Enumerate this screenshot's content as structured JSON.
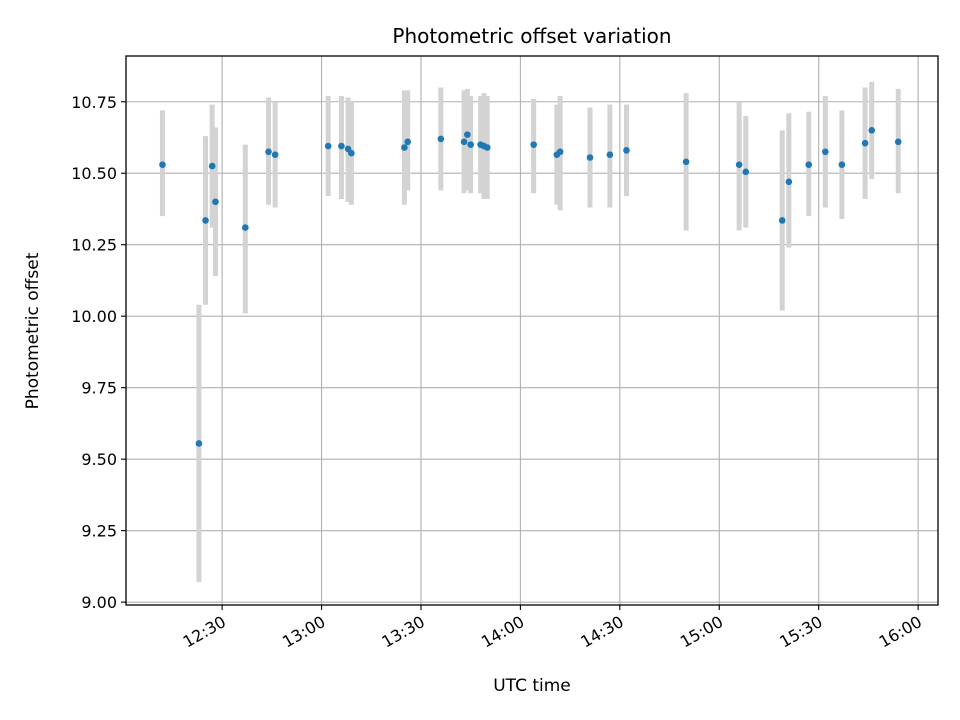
{
  "chart_data": {
    "type": "scatter",
    "title": "Photometric offset variation",
    "xlabel": "UTC time",
    "ylabel": "Photometric offset",
    "x_unit": "minutes",
    "xlim": [
      "12:01",
      "16:06"
    ],
    "ylim": [
      8.99,
      10.91
    ],
    "x_ticks": [
      "12:30",
      "13:00",
      "13:30",
      "14:00",
      "14:30",
      "15:00",
      "15:30",
      "16:00"
    ],
    "y_ticks": [
      "9.00",
      "9.25",
      "9.50",
      "9.75",
      "10.00",
      "10.25",
      "10.50",
      "10.75"
    ],
    "y_tick_values": [
      9.0,
      9.25,
      9.5,
      9.75,
      10.0,
      10.25,
      10.5,
      10.75
    ],
    "grid": true,
    "colors": {
      "point": "#1f77b4",
      "error_bar": "#d3d3d3",
      "grid": "#b0b0b0",
      "axis": "#000000"
    },
    "series": [
      {
        "points": [
          {
            "x": "12:12",
            "y": 10.53,
            "lo": 10.35,
            "hi": 10.72
          },
          {
            "x": "12:23",
            "y": 9.555,
            "lo": 9.07,
            "hi": 10.04
          },
          {
            "x": "12:25",
            "y": 10.335,
            "lo": 10.04,
            "hi": 10.63
          },
          {
            "x": "12:27",
            "y": 10.525,
            "lo": 10.31,
            "hi": 10.74
          },
          {
            "x": "12:28",
            "y": 10.4,
            "lo": 10.14,
            "hi": 10.66
          },
          {
            "x": "12:37",
            "y": 10.31,
            "lo": 10.01,
            "hi": 10.6
          },
          {
            "x": "12:44",
            "y": 10.575,
            "lo": 10.39,
            "hi": 10.765
          },
          {
            "x": "12:46",
            "y": 10.565,
            "lo": 10.38,
            "hi": 10.75
          },
          {
            "x": "13:02",
            "y": 10.595,
            "lo": 10.42,
            "hi": 10.77
          },
          {
            "x": "13:06",
            "y": 10.595,
            "lo": 10.41,
            "hi": 10.77
          },
          {
            "x": "13:08",
            "y": 10.585,
            "lo": 10.4,
            "hi": 10.765
          },
          {
            "x": "13:09",
            "y": 10.57,
            "lo": 10.39,
            "hi": 10.75
          },
          {
            "x": "13:25",
            "y": 10.59,
            "lo": 10.39,
            "hi": 10.79
          },
          {
            "x": "13:26",
            "y": 10.61,
            "lo": 10.44,
            "hi": 10.79
          },
          {
            "x": "13:36",
            "y": 10.62,
            "lo": 10.44,
            "hi": 10.8
          },
          {
            "x": "13:43",
            "y": 10.61,
            "lo": 10.43,
            "hi": 10.79
          },
          {
            "x": "13:44",
            "y": 10.635,
            "lo": 10.44,
            "hi": 10.795
          },
          {
            "x": "13:45",
            "y": 10.6,
            "lo": 10.43,
            "hi": 10.77
          },
          {
            "x": "13:48",
            "y": 10.6,
            "lo": 10.43,
            "hi": 10.77
          },
          {
            "x": "13:49",
            "y": 10.595,
            "lo": 10.41,
            "hi": 10.78
          },
          {
            "x": "13:50",
            "y": 10.59,
            "lo": 10.41,
            "hi": 10.77
          },
          {
            "x": "14:04",
            "y": 10.6,
            "lo": 10.43,
            "hi": 10.76
          },
          {
            "x": "14:11",
            "y": 10.565,
            "lo": 10.39,
            "hi": 10.74
          },
          {
            "x": "14:12",
            "y": 10.575,
            "lo": 10.37,
            "hi": 10.77
          },
          {
            "x": "14:21",
            "y": 10.555,
            "lo": 10.38,
            "hi": 10.73
          },
          {
            "x": "14:27",
            "y": 10.565,
            "lo": 10.38,
            "hi": 10.74
          },
          {
            "x": "14:32",
            "y": 10.58,
            "lo": 10.42,
            "hi": 10.74
          },
          {
            "x": "14:50",
            "y": 10.54,
            "lo": 10.3,
            "hi": 10.78
          },
          {
            "x": "15:06",
            "y": 10.53,
            "lo": 10.3,
            "hi": 10.75
          },
          {
            "x": "15:08",
            "y": 10.505,
            "lo": 10.31,
            "hi": 10.7
          },
          {
            "x": "15:19",
            "y": 10.335,
            "lo": 10.02,
            "hi": 10.65
          },
          {
            "x": "15:21",
            "y": 10.47,
            "lo": 10.24,
            "hi": 10.71
          },
          {
            "x": "15:27",
            "y": 10.53,
            "lo": 10.35,
            "hi": 10.715
          },
          {
            "x": "15:32",
            "y": 10.575,
            "lo": 10.38,
            "hi": 10.77
          },
          {
            "x": "15:37",
            "y": 10.53,
            "lo": 10.34,
            "hi": 10.72
          },
          {
            "x": "15:44",
            "y": 10.605,
            "lo": 10.41,
            "hi": 10.8
          },
          {
            "x": "15:46",
            "y": 10.65,
            "lo": 10.48,
            "hi": 10.82
          },
          {
            "x": "15:54",
            "y": 10.61,
            "lo": 10.43,
            "hi": 10.795
          }
        ]
      }
    ]
  }
}
